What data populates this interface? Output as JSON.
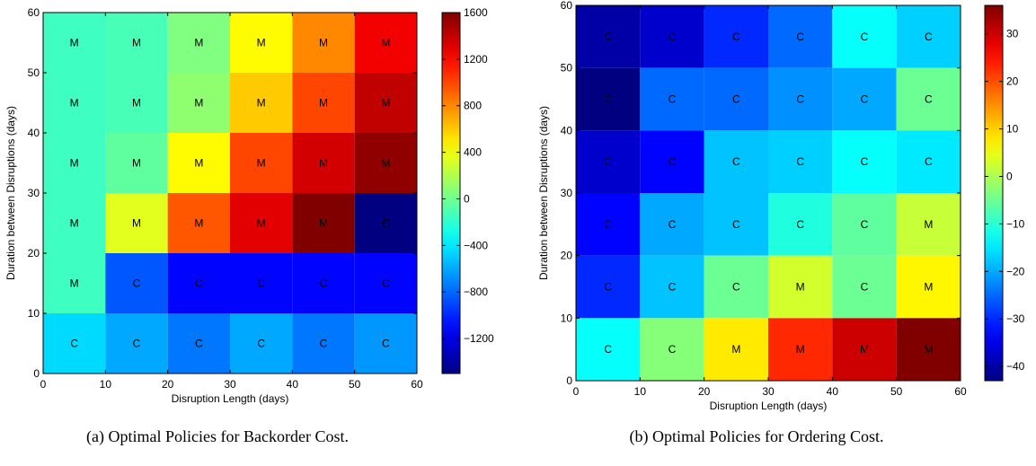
{
  "figure": {
    "captions": [
      "(a) Optimal Policies for Backorder Cost.",
      "(b) Optimal Policies for Ordering Cost."
    ]
  },
  "chart_data": [
    {
      "type": "heatmap",
      "caption": "(a) Optimal Policies for Backorder Cost.",
      "xlabel": "Disruption Length (days)",
      "ylabel": "Duration between Disruptions (days)",
      "xlim": [
        0,
        60
      ],
      "ylim": [
        0,
        60
      ],
      "xticks": [
        0,
        10,
        20,
        30,
        40,
        50,
        60
      ],
      "yticks": [
        0,
        10,
        20,
        30,
        40,
        50,
        60
      ],
      "x_bins": [
        [
          0,
          10
        ],
        [
          10,
          20
        ],
        [
          20,
          30
        ],
        [
          30,
          40
        ],
        [
          40,
          50
        ],
        [
          50,
          60
        ]
      ],
      "y_bins": [
        [
          50,
          60
        ],
        [
          40,
          50
        ],
        [
          30,
          40
        ],
        [
          20,
          30
        ],
        [
          10,
          20
        ],
        [
          0,
          10
        ]
      ],
      "colorbar": {
        "min": -1500,
        "max": 1600,
        "ticks": [
          1600,
          1200,
          800,
          400,
          0,
          -400,
          -800,
          -1200
        ]
      },
      "values": [
        [
          -150,
          -120,
          50,
          450,
          800,
          1250
        ],
        [
          -150,
          -120,
          100,
          600,
          1000,
          1400
        ],
        [
          -150,
          -50,
          450,
          1000,
          1350,
          1550
        ],
        [
          -150,
          350,
          950,
          1300,
          1600,
          -1500
        ],
        [
          -150,
          -850,
          -1100,
          -1100,
          -1100,
          -1100
        ],
        [
          -450,
          -600,
          -750,
          -600,
          -750,
          -650
        ]
      ],
      "labels": [
        [
          "M",
          "M",
          "M",
          "M",
          "M",
          "M"
        ],
        [
          "M",
          "M",
          "M",
          "M",
          "M",
          "M"
        ],
        [
          "M",
          "M",
          "M",
          "M",
          "M",
          "M"
        ],
        [
          "M",
          "M",
          "M",
          "M",
          "M",
          "C"
        ],
        [
          "M",
          "C",
          "C",
          "C",
          "C",
          "C"
        ],
        [
          "C",
          "C",
          "C",
          "C",
          "C",
          "C"
        ]
      ]
    },
    {
      "type": "heatmap",
      "caption": "(b) Optimal Policies for Ordering Cost.",
      "xlabel": "Disruption Length (days)",
      "ylabel": "Duration between Disruptions (days)",
      "xlim": [
        0,
        60
      ],
      "ylim": [
        0,
        60
      ],
      "xticks": [
        0,
        10,
        20,
        30,
        40,
        50,
        60
      ],
      "yticks": [
        0,
        10,
        20,
        30,
        40,
        50,
        60
      ],
      "x_bins": [
        [
          0,
          10
        ],
        [
          10,
          20
        ],
        [
          20,
          30
        ],
        [
          30,
          40
        ],
        [
          40,
          50
        ],
        [
          50,
          60
        ]
      ],
      "y_bins": [
        [
          50,
          60
        ],
        [
          40,
          50
        ],
        [
          30,
          40
        ],
        [
          20,
          30
        ],
        [
          10,
          20
        ],
        [
          0,
          10
        ]
      ],
      "colorbar": {
        "min": -43,
        "max": 36,
        "ticks": [
          30,
          20,
          10,
          0,
          -10,
          -20,
          -30,
          -40
        ]
      },
      "values": [
        [
          -40,
          -37,
          -30,
          -25,
          -13,
          -17
        ],
        [
          -43,
          -25,
          -25,
          -22,
          -20,
          -5
        ],
        [
          -37,
          -33,
          -18,
          -17,
          -13,
          -15
        ],
        [
          -33,
          -20,
          -18,
          -11,
          -6,
          2
        ],
        [
          -30,
          -18,
          -5,
          3,
          -5,
          7
        ],
        [
          -13,
          -3,
          8,
          23,
          30,
          36
        ]
      ],
      "labels": [
        [
          "C",
          "C",
          "C",
          "C",
          "C",
          "C"
        ],
        [
          "C",
          "C",
          "C",
          "C",
          "C",
          "C"
        ],
        [
          "C",
          "C",
          "C",
          "C",
          "C",
          "C"
        ],
        [
          "C",
          "C",
          "C",
          "C",
          "C",
          "M"
        ],
        [
          "C",
          "C",
          "C",
          "M",
          "C",
          "M"
        ],
        [
          "C",
          "C",
          "M",
          "M",
          "M",
          "M"
        ]
      ]
    }
  ]
}
